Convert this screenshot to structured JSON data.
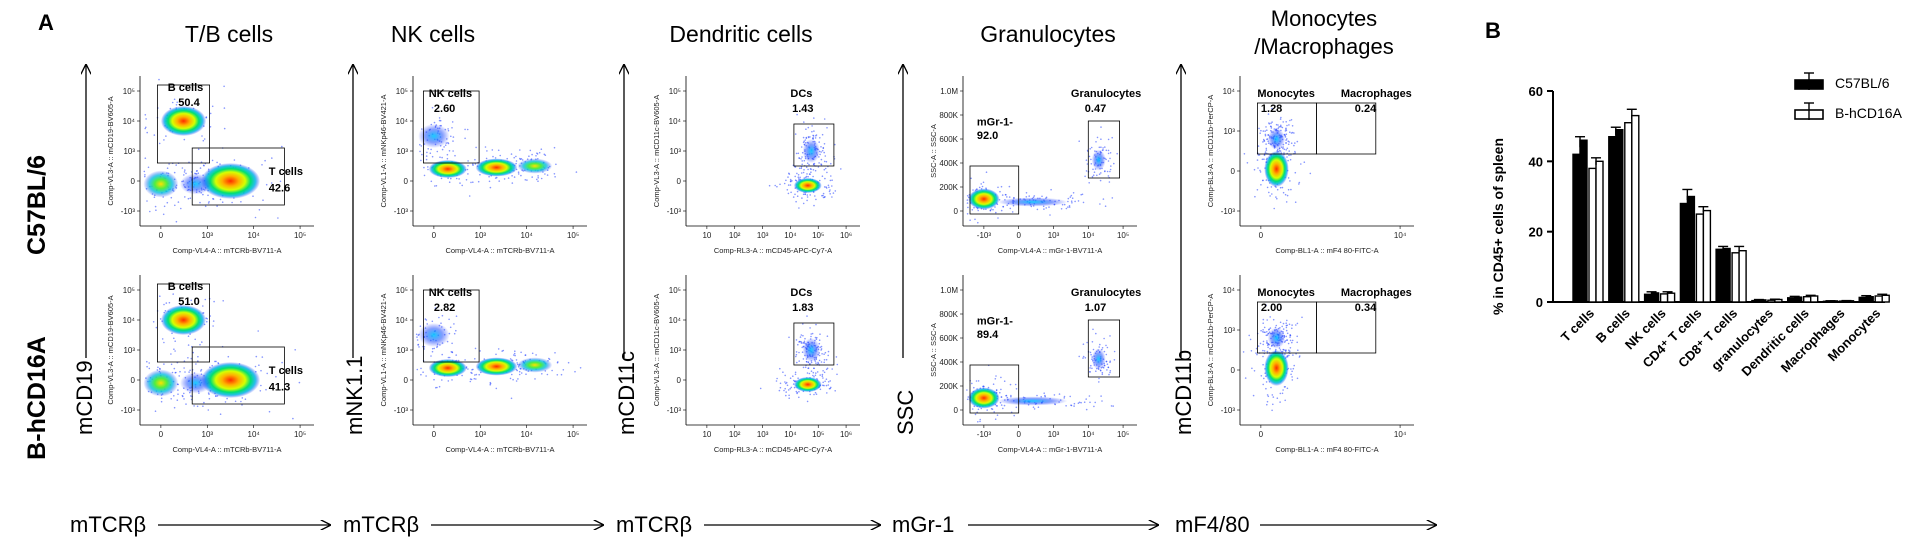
{
  "panel_a_letter": "A",
  "panel_b_letter": "B",
  "columns": [
    {
      "title": "T/B cells",
      "x_marker": "mTCRβ",
      "y_marker": "mCD19",
      "x_param": "Comp-VL4-A :: mTCRb-BV711-A",
      "y_param": "Comp-VL3-A :: mCD19-BV605-A"
    },
    {
      "title": "NK cells",
      "x_marker": "mTCRβ",
      "y_marker": "mNK1.1",
      "x_param": "Comp-VL4-A :: mTCRb-BV711-A",
      "y_param": "Comp-VL1-A :: mNKp46-BV421-A"
    },
    {
      "title": "Dendritic cells",
      "x_marker": "mTCRβ",
      "y_marker": "mCD11c",
      "x_param": "Comp-RL3-A :: mCD45-APC-Cy7-A",
      "y_param": "Comp-VL3-A :: mCD11c-BV605-A"
    },
    {
      "title": "Granulocytes",
      "x_marker": "mGr-1",
      "y_marker": "SSC",
      "x_param": "Comp-VL4-A :: mGr-1-BV711-A",
      "y_param": "SSC-A :: SSC-A"
    },
    {
      "title": "Monocytes",
      "title2": "/Macrophages",
      "x_marker": "mF4/80",
      "y_marker": "mCD11b",
      "x_param": "Comp-BL1-A :: mF4 80-FITC-A",
      "y_param": "Comp-BL3-A :: mCD11b-PerCP-A"
    }
  ],
  "rows": [
    "C57BL/6",
    "B-hCD16A"
  ],
  "plots": [
    [
      {
        "gates": [
          {
            "name": "B cells",
            "value": "50.4"
          },
          {
            "name": "T cells",
            "value": "42.6"
          }
        ]
      },
      {
        "gates": [
          {
            "name": "NK cells",
            "value": "2.60"
          }
        ]
      },
      {
        "gates": [
          {
            "name": "DCs",
            "value": "1.43"
          }
        ]
      },
      {
        "gates": [
          {
            "name": "mGr-1-",
            "value": "92.0"
          },
          {
            "name": "Granulocytes",
            "value": "0.47"
          }
        ]
      },
      {
        "gates": [
          {
            "name": "Monocytes",
            "value": "1.28"
          },
          {
            "name": "Macrophages",
            "value": "0.24"
          }
        ]
      }
    ],
    [
      {
        "gates": [
          {
            "name": "B cells",
            "value": "51.0"
          },
          {
            "name": "T cells",
            "value": "41.3"
          }
        ]
      },
      {
        "gates": [
          {
            "name": "NK cells",
            "value": "2.82"
          }
        ]
      },
      {
        "gates": [
          {
            "name": "DCs",
            "value": "1.83"
          }
        ]
      },
      {
        "gates": [
          {
            "name": "mGr-1-",
            "value": "89.4"
          },
          {
            "name": "Granulocytes",
            "value": "1.07"
          }
        ]
      },
      {
        "gates": [
          {
            "name": "Monocytes",
            "value": "2.00"
          },
          {
            "name": "Macrophages",
            "value": "0.34"
          }
        ]
      }
    ]
  ],
  "tick_labels": {
    "log5_x": [
      "0",
      "10³",
      "10⁴",
      "10⁵"
    ],
    "log5_y": [
      "-10³",
      "0",
      "10³",
      "10⁴",
      "10⁵"
    ],
    "dc_x": [
      "10",
      "10²",
      "10³",
      "10⁴",
      "10⁵",
      "10⁶"
    ],
    "dc_y": [
      "-10³",
      "0",
      "10³",
      "10⁴",
      "10⁵"
    ],
    "gr_x": [
      "-10³",
      "0",
      "10³",
      "10⁴",
      "10⁵"
    ],
    "ssc_y": [
      "0",
      "200K",
      "400K",
      "600K",
      "800K",
      "1.0M"
    ],
    "mac_x": [
      "0",
      "10⁴"
    ],
    "mac_y": [
      "-10³",
      "0",
      "10³",
      "10⁴"
    ]
  },
  "chart_data": {
    "type": "bar",
    "title": "",
    "xlabel": "",
    "ylabel": "% in CD45+ cells of spleen",
    "ylim": [
      0,
      60
    ],
    "yticks": [
      0,
      20,
      40,
      60
    ],
    "categories": [
      "T cells",
      "B cells",
      "NK cells",
      "CD4⁺ T cells",
      "CD8⁺ T cells",
      "granulocytes",
      "Dendritic cells",
      "Macrophages",
      "Monocytes"
    ],
    "legend_position": "top-right",
    "series": [
      {
        "name": "C57BL/6",
        "color": "#000000",
        "values": [
          44,
          47.5,
          2.4,
          29,
          15,
          0.5,
          1.3,
          0.25,
          1.4
        ],
        "errors": [
          3.0,
          2.2,
          0.5,
          3.0,
          0.8,
          0.2,
          0.3,
          0.1,
          0.4
        ],
        "replicates": [
          [
            42,
            46
          ],
          [
            47,
            49
          ],
          [
            2.2,
            2.6
          ],
          [
            28,
            30
          ],
          [
            15,
            15.2
          ],
          [
            0.4,
            0.6
          ],
          [
            1.2,
            1.4
          ],
          [
            0.2,
            0.3
          ],
          [
            1.3,
            1.5
          ]
        ]
      },
      {
        "name": "B-hCD16A",
        "color": "#ffffff",
        "values": [
          39,
          52,
          2.4,
          25.5,
          14.3,
          0.6,
          1.6,
          0.3,
          1.8
        ],
        "errors": [
          2.0,
          2.8,
          0.5,
          1.6,
          1.5,
          0.2,
          0.3,
          0.1,
          0.4
        ],
        "replicates": [
          [
            38,
            40
          ],
          [
            51,
            53
          ],
          [
            2.3,
            2.5
          ],
          [
            25,
            26
          ],
          [
            14,
            14.6
          ],
          [
            0.5,
            0.7
          ],
          [
            1.5,
            1.7
          ],
          [
            0.25,
            0.35
          ],
          [
            1.7,
            1.9
          ]
        ]
      }
    ]
  }
}
